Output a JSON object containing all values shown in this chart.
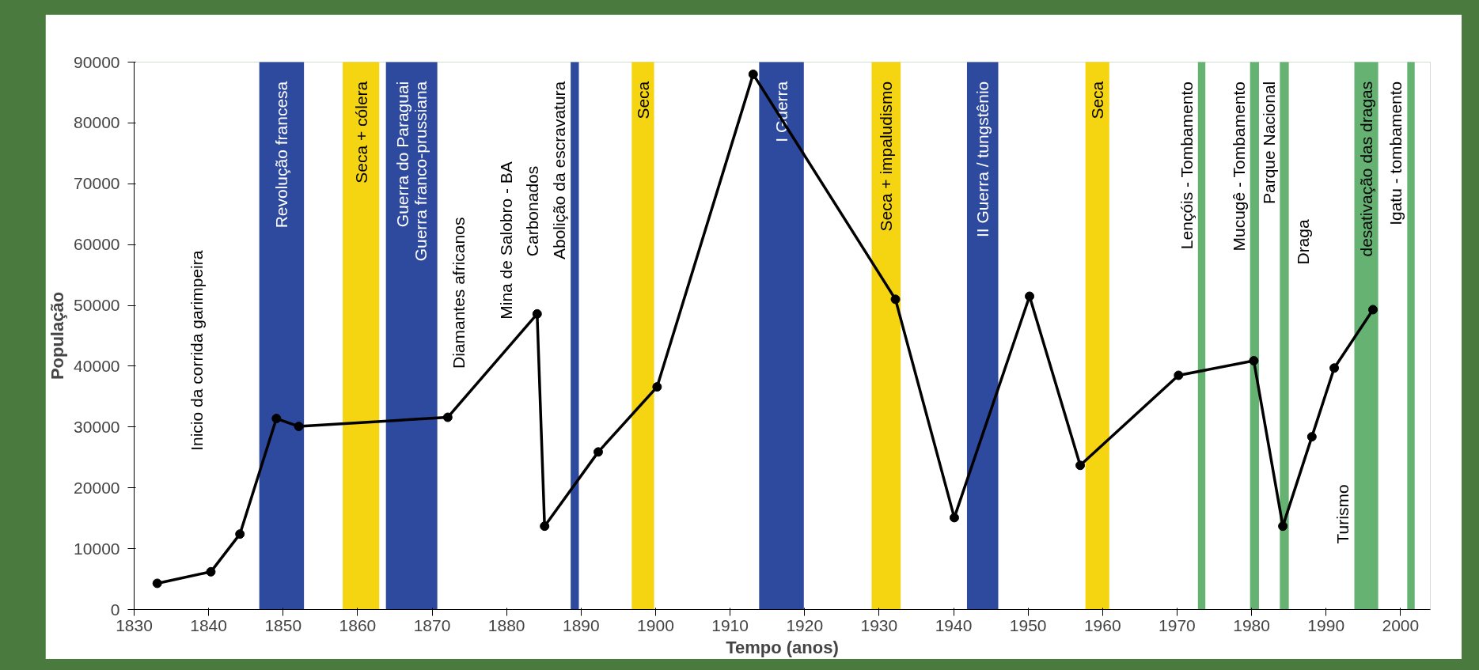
{
  "chart_data": {
    "type": "line",
    "xlabel": "Tempo (anos)",
    "ylabel": "População",
    "x": [
      1833.1,
      1840.3,
      1844.2,
      1849.1,
      1852.1,
      1872.1,
      1884.1,
      1885.1,
      1892.3,
      1900.2,
      1913.1,
      1932.2,
      1940.1,
      1950.2,
      1957.0,
      1970.2,
      1980.3,
      1984.2,
      1988.1,
      1991.1,
      1996.3
    ],
    "series": [
      {
        "color": "#000000",
        "values": [
          4300,
          6200,
          12400,
          31400,
          30100,
          31600,
          48600,
          13700,
          25900,
          36600,
          88000,
          51000,
          15100,
          51500,
          23700,
          38500,
          40900,
          13700,
          28400,
          39700,
          49300
        ]
      }
    ],
    "xlim": [
      1830,
      2004
    ],
    "ylim": [
      0,
      90000
    ],
    "xticks": [
      1830,
      1840,
      1850,
      1860,
      1870,
      1880,
      1890,
      1900,
      1910,
      1920,
      1930,
      1940,
      1950,
      1960,
      1970,
      1980,
      1990,
      2000
    ],
    "yticks": [
      0,
      10000,
      20000,
      30000,
      40000,
      50000,
      60000,
      70000,
      80000,
      90000
    ],
    "bands": [
      {
        "axis": "x",
        "from": 1846.8,
        "to": 1852.8,
        "label": "Revolução francesa",
        "color": "#2e4a9e"
      },
      {
        "axis": "x",
        "from": 1858.0,
        "to": 1862.9,
        "label": "Seca + cólera",
        "color": "#f5d411"
      },
      {
        "axis": "x",
        "from": 1863.8,
        "to": 1870.7,
        "label": "Guerra do Paraguai\nGuerra franco-prussiana",
        "color": "#2e4a9e"
      },
      {
        "axis": "x",
        "from": 1888.6,
        "to": 1889.7,
        "label": "Abolição da escravatura",
        "color": "#2e4a9e"
      },
      {
        "axis": "x",
        "from": 1896.8,
        "to": 1899.8,
        "label": "Seca",
        "color": "#f5d411"
      },
      {
        "axis": "x",
        "from": 1913.9,
        "to": 1919.9,
        "label": "I Guerra",
        "color": "#2e4a9e"
      },
      {
        "axis": "x",
        "from": 1929.0,
        "to": 1932.9,
        "label": "Seca + impaludismo",
        "color": "#f5d411"
      },
      {
        "axis": "x",
        "from": 1941.8,
        "to": 1946.0,
        "label": "II Guerra / tungstênio",
        "color": "#2e4a9e"
      },
      {
        "axis": "x",
        "from": 1957.7,
        "to": 1960.9,
        "label": "Seca",
        "color": "#f5d411"
      },
      {
        "axis": "x",
        "from": 1972.8,
        "to": 1973.8,
        "label": "Lençóis - Tombamento",
        "color": "#66b273"
      },
      {
        "axis": "x",
        "from": 1979.8,
        "to": 1981.0,
        "label": "Mucugê - Tombamento",
        "color": "#66b273"
      },
      {
        "axis": "x",
        "from": 1983.8,
        "to": 1985.0,
        "label": "Parque Nacional",
        "color": "#66b273"
      },
      {
        "axis": "x",
        "from": 1993.8,
        "to": 1997.0,
        "label": "desativação das dragas",
        "color": "#66b273"
      },
      {
        "axis": "x",
        "from": 2000.9,
        "to": 2001.9,
        "label": "Igatu - tombamento",
        "color": "#66b273"
      }
    ],
    "annotations": [
      "Inicio da corrida garimpeira",
      "Diamantes africanos",
      "Mina de Salobro - BA",
      "Carbonados",
      "Draga",
      "Turismo"
    ],
    "marker": "circle",
    "grid": false
  }
}
